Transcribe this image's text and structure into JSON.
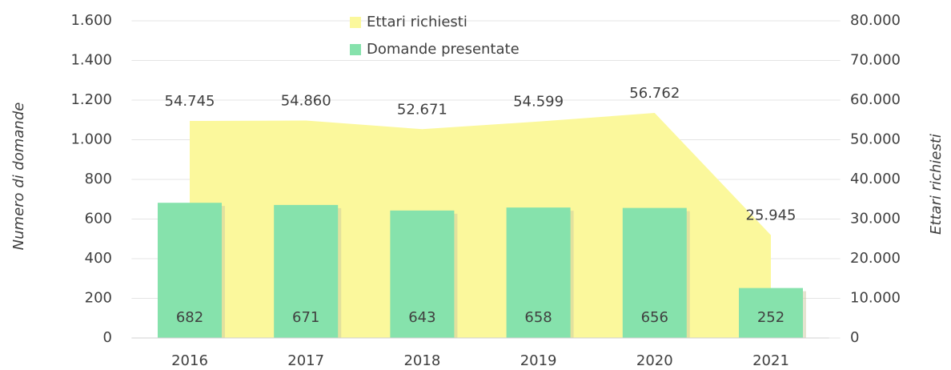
{
  "chart_data": {
    "type": "bar",
    "categories": [
      "2016",
      "2017",
      "2018",
      "2019",
      "2020",
      "2021"
    ],
    "series": [
      {
        "name": "Ettari richiesti",
        "type": "area",
        "axis": "y2",
        "color": "#fbf89c",
        "values": [
          54745,
          54860,
          52671,
          54599,
          56762,
          25945
        ],
        "value_labels": [
          "54.745",
          "54.860",
          "52.671",
          "54.599",
          "56.762",
          "25.945"
        ]
      },
      {
        "name": "Domande presentate",
        "type": "bar",
        "axis": "y",
        "color": "#86e2ac",
        "values": [
          682,
          671,
          643,
          658,
          656,
          252
        ]
      }
    ],
    "ylabel": "Numero di domande",
    "y2label": "Ettari richiesti",
    "ylim": [
      0,
      1600
    ],
    "yticks": [
      0,
      200,
      400,
      600,
      800,
      {
        "value": 1000,
        "label": "1.000"
      },
      {
        "value": 1200,
        "label": "1.200"
      },
      {
        "value": 1400,
        "label": "1.400"
      },
      {
        "value": 1600,
        "label": "1.600"
      }
    ],
    "y2lim": [
      0,
      80000
    ],
    "y2ticks": [
      0,
      {
        "value": 10000,
        "label": "10.000"
      },
      {
        "value": 20000,
        "label": "20.000"
      },
      {
        "value": 30000,
        "label": "30.000"
      },
      {
        "value": 40000,
        "label": "40.000"
      },
      {
        "value": 50000,
        "label": "50.000"
      },
      {
        "value": 60000,
        "label": "60.000"
      },
      {
        "value": 70000,
        "label": "70.000"
      },
      {
        "value": 80000,
        "label": "80.000"
      }
    ],
    "grid": true,
    "legend": "top"
  }
}
